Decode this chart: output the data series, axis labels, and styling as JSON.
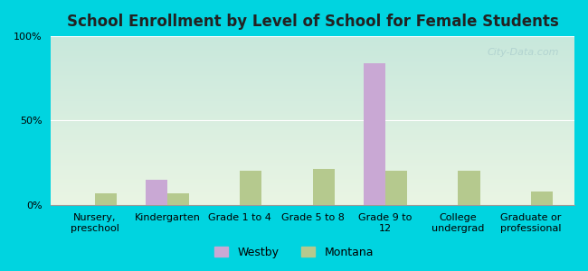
{
  "title": "School Enrollment by Level of School for Female Students",
  "categories": [
    "Nursery,\npreschool",
    "Kindergarten",
    "Grade 1 to 4",
    "Grade 5 to 8",
    "Grade 9 to\n12",
    "College\nundergrad",
    "Graduate or\nprofessional"
  ],
  "westby": [
    0,
    15.0,
    0,
    0,
    84.0,
    0,
    0
  ],
  "montana": [
    7.0,
    7.0,
    20.0,
    21.0,
    20.0,
    20.0,
    8.0
  ],
  "westby_color": "#c9a8d4",
  "montana_color": "#b5c98e",
  "background_outer": "#00d4e0",
  "background_inner_top": "#c8e8dc",
  "background_inner_bottom": "#eaf5e4",
  "title_fontsize": 12,
  "tick_fontsize": 8,
  "legend_fontsize": 9,
  "ylim": [
    0,
    100
  ],
  "yticks": [
    0,
    50,
    100
  ],
  "ytick_labels": [
    "0%",
    "50%",
    "100%"
  ],
  "bar_width": 0.3,
  "watermark": "City-Data.com"
}
